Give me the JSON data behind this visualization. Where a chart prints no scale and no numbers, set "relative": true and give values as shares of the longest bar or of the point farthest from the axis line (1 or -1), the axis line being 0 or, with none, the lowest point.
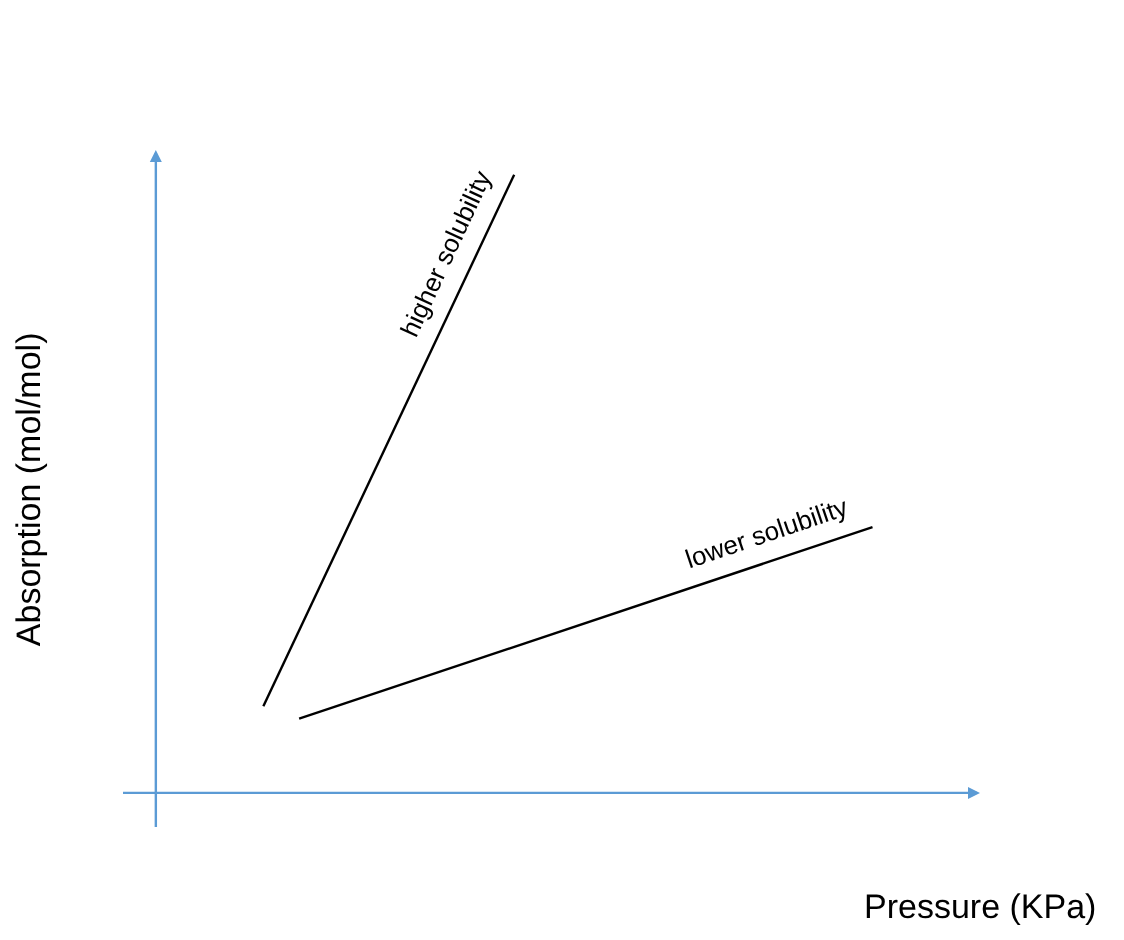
{
  "chart_data": {
    "type": "line",
    "relative": true,
    "xlabel": "Pressure (KPa)",
    "ylabel": "Absorption (mol/mol)",
    "marker": "none",
    "line_style": "solid",
    "legend": false,
    "categories": [
      null,
      null,
      null,
      null,
      null,
      null,
      null,
      null,
      null,
      null,
      null,
      null,
      null,
      null,
      null,
      null,
      null,
      null,
      null,
      null,
      null
    ],
    "series": [
      {
        "name": "higher solubility",
        "color": "#000000",
        "values": [
          null,
          null,
          null,
          0.14,
          null,
          null,
          null,
          null,
          null,
          null,
          1,
          null,
          null,
          null,
          null,
          null,
          null,
          null,
          null,
          null,
          null
        ]
      },
      {
        "name": "lower solubility",
        "color": "#000000",
        "values": [
          null,
          null,
          null,
          null,
          0.12,
          null,
          null,
          null,
          null,
          null,
          null,
          null,
          null,
          null,
          null,
          null,
          null,
          null,
          null,
          null,
          0.43
        ]
      }
    ]
  }
}
